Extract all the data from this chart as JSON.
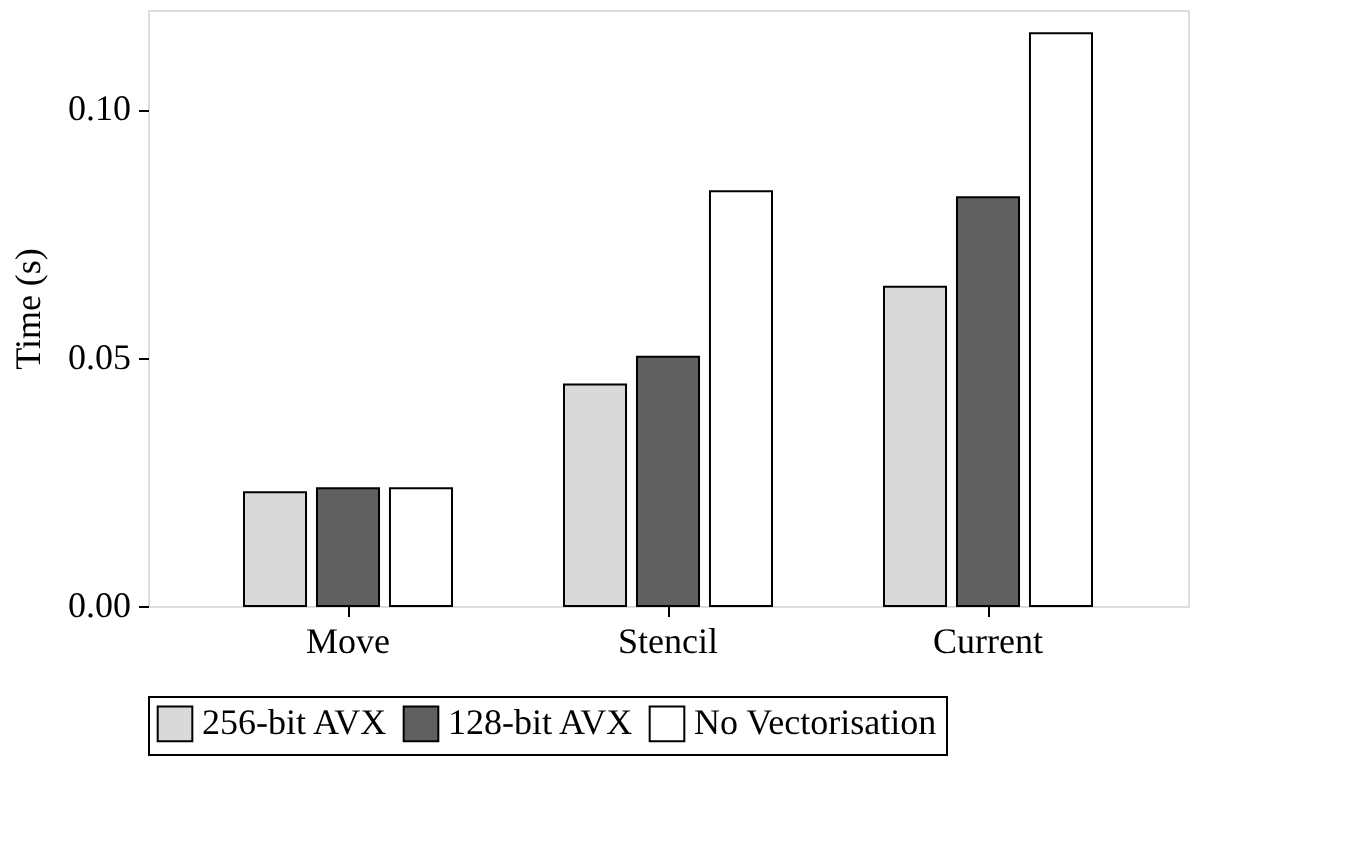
{
  "chart_data": {
    "type": "bar",
    "ylabel": "Time (s)",
    "categories": [
      "Move",
      "Stencil",
      "Current"
    ],
    "series": [
      {
        "name": "256-bit AVX",
        "color": "#d9d9d9",
        "values": [
          0.0229,
          0.0446,
          0.0643
        ]
      },
      {
        "name": "128-bit AVX",
        "color": "#606060",
        "values": [
          0.0237,
          0.0502,
          0.0823
        ]
      },
      {
        "name": "No Vectorisation",
        "color": "#ffffff",
        "values": [
          0.0237,
          0.0835,
          0.1153
        ]
      }
    ],
    "ylim": [
      0,
      0.12
    ],
    "yticks": [
      {
        "value": 0,
        "label": "0.00"
      },
      {
        "value": 0.05,
        "label": "0.05"
      },
      {
        "value": 0.1,
        "label": "0.10"
      }
    ],
    "grid": false,
    "legend": "bottom"
  }
}
